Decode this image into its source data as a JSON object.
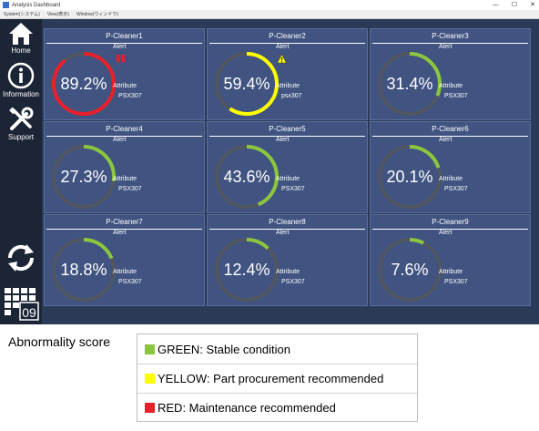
{
  "window": {
    "title": "Analysis Dashboard",
    "controls": [
      "—",
      "☐",
      "✕"
    ],
    "menu": [
      "System(システム)",
      "View(表示)",
      "Window(ウィンドウ)"
    ]
  },
  "sidebar": {
    "items": [
      {
        "label": "Home",
        "icon": "home-icon"
      },
      {
        "label": "Information",
        "icon": "info-icon"
      },
      {
        "label": "Support",
        "icon": "support-tools-icon"
      },
      {
        "label": "",
        "icon": "refresh-icon"
      },
      {
        "label": "09",
        "icon": "calendar-icon"
      }
    ]
  },
  "tiles": [
    {
      "name": "P-Cleaner1",
      "score": 89.2,
      "score_text": "89.2%",
      "status": "red",
      "alert_label": "Alert",
      "attribute_label": "Attribute",
      "attribute_value": "PSX307"
    },
    {
      "name": "P-Cleaner2",
      "score": 59.4,
      "score_text": "59.4%",
      "status": "yellow",
      "alert_label": "Alert",
      "attribute_label": "Attribute",
      "attribute_value": "psx307"
    },
    {
      "name": "P-Cleaner3",
      "score": 31.4,
      "score_text": "31.4%",
      "status": "green",
      "alert_label": "Alert",
      "attribute_label": "Attribute",
      "attribute_value": "PSX307"
    },
    {
      "name": "P-Cleaner4",
      "score": 27.3,
      "score_text": "27.3%",
      "status": "green",
      "alert_label": "Alert",
      "attribute_label": "Attribute",
      "attribute_value": "PSX307"
    },
    {
      "name": "P-Cleaner5",
      "score": 43.6,
      "score_text": "43.6%",
      "status": "green",
      "alert_label": "Alert",
      "attribute_label": "Attribute",
      "attribute_value": "PSX307"
    },
    {
      "name": "P-Cleaner6",
      "score": 20.1,
      "score_text": "20.1%",
      "status": "green",
      "alert_label": "Alert",
      "attribute_label": "Attribute",
      "attribute_value": "PSX307"
    },
    {
      "name": "P-Cleaner7",
      "score": 18.8,
      "score_text": "18.8%",
      "status": "green",
      "alert_label": "Alert",
      "attribute_label": "Attribute",
      "attribute_value": "PSX307"
    },
    {
      "name": "P-Cleaner8",
      "score": 12.4,
      "score_text": "12.4%",
      "status": "green",
      "alert_label": "Alert",
      "attribute_label": "Attribute",
      "attribute_value": "PSX307"
    },
    {
      "name": "P-Cleaner9",
      "score": 7.6,
      "score_text": "7.6%",
      "status": "green",
      "alert_label": "Alert",
      "attribute_label": "Attribute",
      "attribute_value": "PSX307"
    }
  ],
  "colors": {
    "green": "#8cc63f",
    "yellow": "#ffff00",
    "red": "#e8202a",
    "track": "#505662",
    "tile_bg": "#405381"
  },
  "legend": {
    "title": "Abnormality score",
    "items": [
      {
        "label": "GREEN: Stable condition",
        "color": "#8cc63f"
      },
      {
        "label": "YELLOW: Part procurement recommended",
        "color": "#ffff00"
      },
      {
        "label": "RED: Maintenance recommended",
        "color": "#e8202a"
      }
    ]
  }
}
